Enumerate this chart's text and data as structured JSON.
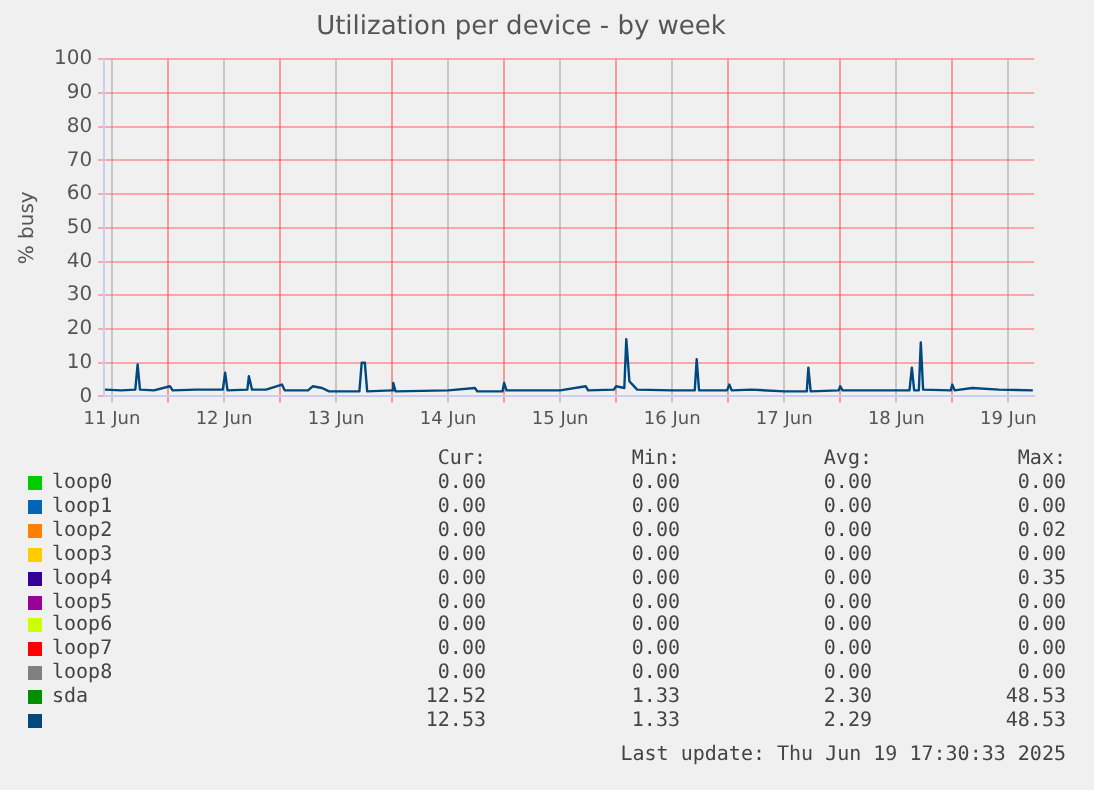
{
  "chart_data": {
    "type": "line",
    "title": "Utilization per device - by week",
    "ylabel": "% busy",
    "xlim": [
      "2025-06-11T10:20",
      "2025-06-19T17:30"
    ],
    "xticks": [
      {
        "value": "2025-06-11T12:00",
        "label": "11 Jun"
      },
      {
        "value": "2025-06-12T00:00",
        "label": null
      },
      {
        "value": "2025-06-12T12:00",
        "label": "12 Jun"
      },
      {
        "value": "2025-06-13T00:00",
        "label": null
      },
      {
        "value": "2025-06-13T12:00",
        "label": "13 Jun"
      },
      {
        "value": "2025-06-14T00:00",
        "label": null
      },
      {
        "value": "2025-06-14T12:00",
        "label": "14 Jun"
      },
      {
        "value": "2025-06-15T00:00",
        "label": null
      },
      {
        "value": "2025-06-15T12:00",
        "label": "15 Jun"
      },
      {
        "value": "2025-06-16T00:00",
        "label": null
      },
      {
        "value": "2025-06-16T12:00",
        "label": "16 Jun"
      },
      {
        "value": "2025-06-17T00:00",
        "label": null
      },
      {
        "value": "2025-06-17T12:00",
        "label": "17 Jun"
      },
      {
        "value": "2025-06-18T00:00",
        "label": null
      },
      {
        "value": "2025-06-18T12:00",
        "label": "18 Jun"
      },
      {
        "value": "2025-06-19T00:00",
        "label": null
      },
      {
        "value": "2025-06-19T12:00",
        "label": "19 Jun"
      }
    ],
    "ylim": [
      0,
      100
    ],
    "yticks": [
      0,
      10,
      20,
      30,
      40,
      50,
      60,
      70,
      80,
      90,
      100
    ],
    "grid": true,
    "legend": "bottom",
    "marker": "none",
    "line_style": "solid",
    "x": [
      "2025-06-11T10:30",
      "2025-06-11T14:00",
      "2025-06-11T17:00",
      "2025-06-11T17:30",
      "2025-06-11T18:00",
      "2025-06-11T21:00",
      "2025-06-12T00:25",
      "2025-06-12T01:00",
      "2025-06-12T06:00",
      "2025-06-12T11:45",
      "2025-06-12T12:15",
      "2025-06-12T12:45",
      "2025-06-12T17:00",
      "2025-06-12T17:20",
      "2025-06-12T18:00",
      "2025-06-12T21:00",
      "2025-06-13T00:25",
      "2025-06-13T01:00",
      "2025-06-13T06:00",
      "2025-06-13T07:00",
      "2025-06-13T09:00",
      "2025-06-13T10:30",
      "2025-06-13T17:00",
      "2025-06-13T17:30",
      "2025-06-13T18:10",
      "2025-06-13T18:40",
      "2025-06-14T00:00",
      "2025-06-14T00:15",
      "2025-06-14T00:45",
      "2025-06-14T12:00",
      "2025-06-14T17:45",
      "2025-06-14T18:15",
      "2025-06-14T23:40",
      "2025-06-15T00:00",
      "2025-06-15T00:30",
      "2025-06-15T12:00",
      "2025-06-15T17:30",
      "2025-06-15T18:00",
      "2025-06-15T23:30",
      "2025-06-16T00:00",
      "2025-06-16T01:45",
      "2025-06-16T02:10",
      "2025-06-16T02:50",
      "2025-06-16T03:30",
      "2025-06-16T04:30",
      "2025-06-16T12:00",
      "2025-06-16T16:50",
      "2025-06-16T17:15",
      "2025-06-16T17:45",
      "2025-06-16T23:45",
      "2025-06-17T00:15",
      "2025-06-17T00:45",
      "2025-06-17T05:00",
      "2025-06-17T12:00",
      "2025-06-17T16:50",
      "2025-06-17T17:10",
      "2025-06-17T17:40",
      "2025-06-17T23:40",
      "2025-06-18T00:00",
      "2025-06-18T00:30",
      "2025-06-18T14:50",
      "2025-06-18T15:20",
      "2025-06-18T15:50",
      "2025-06-18T16:50",
      "2025-06-18T17:15",
      "2025-06-18T17:45",
      "2025-06-18T23:40",
      "2025-06-19T00:00",
      "2025-06-19T00:30",
      "2025-06-19T04:15",
      "2025-06-19T10:00",
      "2025-06-19T17:15"
    ],
    "series": [
      {
        "name": "loop0",
        "color": "#00cc00",
        "values": [
          null,
          null,
          null,
          null,
          null,
          null,
          null,
          null,
          null,
          null,
          null,
          null,
          null,
          null,
          null,
          null,
          null,
          null,
          null,
          null,
          null,
          null,
          null,
          null,
          null,
          null,
          null,
          null,
          null,
          null,
          null,
          null,
          null,
          null,
          null,
          null,
          null,
          null,
          null,
          null,
          null,
          null,
          null,
          null,
          null,
          null,
          null,
          null,
          null,
          null,
          null,
          null,
          null,
          null,
          null,
          null,
          null,
          null,
          null,
          null,
          null,
          null,
          null,
          null,
          null,
          null,
          null,
          null,
          null,
          null,
          null,
          null
        ]
      },
      {
        "name": "loop1",
        "color": "#0066b3",
        "values": [
          null,
          null,
          null,
          null,
          null,
          null,
          null,
          null,
          null,
          null,
          null,
          null,
          null,
          null,
          null,
          null,
          null,
          null,
          null,
          null,
          null,
          null,
          null,
          null,
          null,
          null,
          null,
          null,
          null,
          null,
          null,
          null,
          null,
          null,
          null,
          null,
          null,
          null,
          null,
          null,
          null,
          null,
          null,
          null,
          null,
          null,
          null,
          null,
          null,
          null,
          null,
          null,
          null,
          null,
          null,
          null,
          null,
          null,
          null,
          null,
          null,
          null,
          null,
          null,
          null,
          null,
          null,
          null,
          null,
          null,
          null,
          null
        ]
      },
      {
        "name": "loop2",
        "color": "#ff8000",
        "values": [
          null,
          null,
          null,
          null,
          null,
          null,
          null,
          null,
          null,
          null,
          null,
          null,
          null,
          null,
          null,
          null,
          null,
          null,
          null,
          null,
          null,
          null,
          null,
          null,
          null,
          null,
          null,
          null,
          null,
          null,
          null,
          null,
          null,
          null,
          null,
          null,
          null,
          null,
          null,
          null,
          null,
          null,
          null,
          null,
          null,
          null,
          null,
          null,
          null,
          null,
          null,
          null,
          null,
          null,
          null,
          null,
          null,
          null,
          null,
          null,
          null,
          null,
          null,
          null,
          null,
          null,
          null,
          null,
          null,
          null,
          null,
          null
        ]
      },
      {
        "name": "loop3",
        "color": "#ffcc00",
        "values": [
          null,
          null,
          null,
          null,
          null,
          null,
          null,
          null,
          null,
          null,
          null,
          null,
          null,
          null,
          null,
          null,
          null,
          null,
          null,
          null,
          null,
          null,
          null,
          null,
          null,
          null,
          null,
          null,
          null,
          null,
          null,
          null,
          null,
          null,
          null,
          null,
          null,
          null,
          null,
          null,
          null,
          null,
          null,
          null,
          null,
          null,
          null,
          null,
          null,
          null,
          null,
          null,
          null,
          null,
          null,
          null,
          null,
          null,
          null,
          null,
          null,
          null,
          null,
          null,
          null,
          null,
          null,
          null,
          null,
          null,
          null,
          null
        ]
      },
      {
        "name": "loop4",
        "color": "#330099",
        "values": [
          null,
          null,
          null,
          null,
          null,
          null,
          null,
          null,
          null,
          null,
          null,
          null,
          null,
          null,
          null,
          null,
          null,
          null,
          null,
          null,
          null,
          null,
          null,
          null,
          null,
          null,
          null,
          null,
          null,
          null,
          null,
          null,
          null,
          null,
          null,
          null,
          null,
          null,
          null,
          null,
          null,
          null,
          null,
          null,
          null,
          null,
          null,
          null,
          null,
          null,
          null,
          null,
          null,
          null,
          null,
          null,
          null,
          null,
          null,
          null,
          null,
          null,
          null,
          null,
          null,
          null,
          null,
          null,
          null,
          null,
          null,
          null
        ]
      },
      {
        "name": "loop5",
        "color": "#990099",
        "values": [
          null,
          null,
          null,
          null,
          null,
          null,
          null,
          null,
          null,
          null,
          null,
          null,
          null,
          null,
          null,
          null,
          null,
          null,
          null,
          null,
          null,
          null,
          null,
          null,
          null,
          null,
          null,
          null,
          null,
          null,
          null,
          null,
          null,
          null,
          null,
          null,
          null,
          null,
          null,
          null,
          null,
          null,
          null,
          null,
          null,
          null,
          null,
          null,
          null,
          null,
          null,
          null,
          null,
          null,
          null,
          null,
          null,
          null,
          null,
          null,
          null,
          null,
          null,
          null,
          null,
          null,
          null,
          null,
          null,
          null,
          null,
          null
        ]
      },
      {
        "name": "loop6",
        "color": "#ccff00",
        "values": [
          null,
          null,
          null,
          null,
          null,
          null,
          null,
          null,
          null,
          null,
          null,
          null,
          null,
          null,
          null,
          null,
          null,
          null,
          null,
          null,
          null,
          null,
          null,
          null,
          null,
          null,
          null,
          null,
          null,
          null,
          null,
          null,
          null,
          null,
          null,
          null,
          null,
          null,
          null,
          null,
          null,
          null,
          null,
          null,
          null,
          null,
          null,
          null,
          null,
          null,
          null,
          null,
          null,
          null,
          null,
          null,
          null,
          null,
          null,
          null,
          null,
          null,
          null,
          null,
          null,
          null,
          null,
          null,
          null,
          null,
          null,
          null
        ]
      },
      {
        "name": "loop7",
        "color": "#ff0000",
        "values": [
          null,
          null,
          null,
          null,
          null,
          null,
          null,
          null,
          null,
          null,
          null,
          null,
          null,
          null,
          null,
          null,
          null,
          null,
          null,
          null,
          null,
          null,
          null,
          null,
          null,
          null,
          null,
          null,
          null,
          null,
          null,
          null,
          null,
          null,
          null,
          null,
          null,
          null,
          null,
          null,
          null,
          null,
          null,
          null,
          null,
          null,
          null,
          null,
          null,
          null,
          null,
          null,
          null,
          null,
          null,
          null,
          null,
          null,
          null,
          null,
          null,
          null,
          null,
          null,
          null,
          null,
          null,
          null,
          null,
          null,
          null,
          null
        ]
      },
      {
        "name": "loop8",
        "color": "#808080",
        "values": [
          null,
          null,
          null,
          null,
          null,
          null,
          null,
          null,
          null,
          null,
          null,
          null,
          null,
          null,
          null,
          null,
          null,
          null,
          null,
          null,
          null,
          null,
          null,
          null,
          null,
          null,
          null,
          null,
          null,
          null,
          null,
          null,
          null,
          null,
          null,
          null,
          null,
          null,
          null,
          null,
          null,
          null,
          null,
          null,
          null,
          null,
          null,
          null,
          null,
          null,
          null,
          null,
          null,
          null,
          null,
          null,
          null,
          null,
          null,
          null,
          null,
          null,
          null,
          null,
          null,
          null,
          null,
          null,
          null,
          null,
          null,
          null
        ]
      },
      {
        "name": "sda",
        "color": "#008f00",
        "values": [
          null,
          null,
          null,
          null,
          null,
          null,
          null,
          null,
          null,
          null,
          null,
          null,
          null,
          null,
          null,
          null,
          null,
          null,
          null,
          null,
          null,
          null,
          null,
          null,
          null,
          null,
          null,
          null,
          null,
          null,
          null,
          null,
          null,
          null,
          null,
          null,
          null,
          null,
          null,
          null,
          null,
          null,
          null,
          null,
          null,
          null,
          null,
          null,
          null,
          null,
          null,
          null,
          null,
          null,
          null,
          null,
          null,
          null,
          null,
          null,
          null,
          null,
          null,
          null,
          null,
          null,
          null,
          null,
          null,
          null,
          null,
          null
        ]
      },
      {
        "color": "#00487d",
        "values": [
          2,
          1.8,
          2,
          9.5,
          2,
          1.8,
          3,
          1.8,
          2,
          2,
          7,
          1.8,
          2,
          6,
          2,
          2,
          3.5,
          1.8,
          1.8,
          3,
          2.5,
          1.5,
          1.5,
          10,
          10,
          1.5,
          1.8,
          4,
          1.5,
          1.8,
          2.5,
          1.5,
          1.5,
          4,
          1.8,
          1.8,
          3,
          1.8,
          2,
          3,
          2.5,
          17,
          4.5,
          3.5,
          2,
          1.8,
          1.8,
          11,
          1.8,
          1.8,
          3.5,
          1.8,
          2,
          1.5,
          1.5,
          8.5,
          1.5,
          1.8,
          3,
          1.8,
          1.8,
          8.5,
          1.8,
          1.8,
          16,
          2,
          1.8,
          3.5,
          1.8,
          2.5,
          2,
          1.8
        ]
      }
    ],
    "annotations": [
      "Cur:",
      "Min:",
      "Avg:",
      "Max:",
      "0.00 0.00 0.00 0.00",
      "0.00 0.00 0.00 0.00",
      "0.00 0.00 0.00 0.02",
      "0.00 0.00 0.00 0.00",
      "0.00 0.00 0.00 0.35",
      "0.00 0.00 0.00 0.00",
      "0.00 0.00 0.00 0.00",
      "0.00 0.00 0.00 0.00",
      "0.00 0.00 0.00 0.00",
      "12.52 1.33 2.30 48.53",
      "12.53 1.33 2.29 48.53",
      "Last update: Thu Jun 19 17:30:33 2025"
    ]
  }
}
